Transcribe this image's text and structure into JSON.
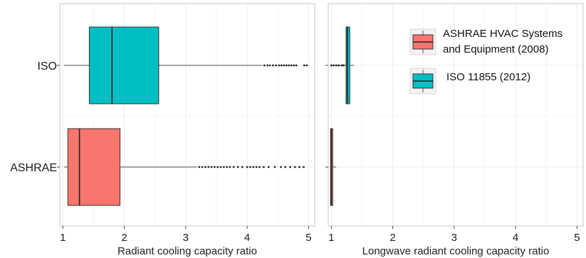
{
  "chart_data": [
    {
      "type": "boxplot",
      "orientation": "horizontal",
      "xlabel": "Radiant cooling capacity ratio",
      "xlim": [
        0.95,
        5.1
      ],
      "xticks": [
        1,
        2,
        3,
        4,
        5
      ],
      "categories": [
        "ISO",
        "ASHRAE"
      ],
      "grid": true,
      "series": [
        {
          "name": "ISO 11855 (2012)",
          "category": "ISO",
          "whisker_low": 1.02,
          "q1": 1.43,
          "median": 1.8,
          "q3": 2.56,
          "whisker_high": 4.25,
          "outliers": [
            4.28,
            4.33,
            4.37,
            4.42,
            4.47,
            4.52,
            4.56,
            4.6,
            4.64,
            4.68,
            4.72,
            4.76,
            4.8,
            4.93,
            4.97
          ]
        },
        {
          "name": "ASHRAE HVAC Systems and Equipment (2008)",
          "category": "ASHRAE",
          "whisker_low": 1.02,
          "q1": 1.08,
          "median": 1.27,
          "q3": 1.93,
          "whisker_high": 3.18,
          "outliers": [
            3.22,
            3.27,
            3.32,
            3.37,
            3.42,
            3.47,
            3.52,
            3.57,
            3.62,
            3.67,
            3.72,
            3.78,
            3.85,
            3.92,
            4.0,
            4.05,
            4.1,
            4.15,
            4.2,
            4.27,
            4.35,
            4.45,
            4.55,
            4.62,
            4.7,
            4.78,
            4.85,
            4.92
          ]
        }
      ]
    },
    {
      "type": "boxplot",
      "orientation": "horizontal",
      "xlabel": "Longwave radiant cooling capacity ratio",
      "xlim": [
        0.95,
        5.1
      ],
      "xticks": [
        1,
        2,
        3,
        4,
        5
      ],
      "categories": [
        "ISO",
        "ASHRAE"
      ],
      "grid": true,
      "series": [
        {
          "name": "ISO 11855 (2012)",
          "category": "ISO",
          "whisker_low": 1.0,
          "q1": 1.24,
          "median": 1.26,
          "q3": 1.3,
          "whisker_high": 1.37,
          "outliers": [
            1.0,
            1.04,
            1.08,
            1.12,
            1.17,
            1.2
          ]
        },
        {
          "name": "ASHRAE HVAC Systems and Equipment (2008)",
          "category": "ASHRAE",
          "whisker_low": 1.0,
          "q1": 1.0,
          "median": 1.0,
          "q3": 1.0,
          "whisker_high": 1.08,
          "outliers": []
        }
      ]
    }
  ],
  "legend": {
    "placement": "top-right",
    "items": [
      {
        "name": "ASHRAE HVAC Systems and Equipment (2008)",
        "lines": [
          "ASHRAE HVAC Systems",
          "and Equipment (2008)"
        ],
        "color": "#F8766D"
      },
      {
        "name": "ISO 11855 (2012)",
        "lines": [
          "ISO 11855 (2012)"
        ],
        "color": "#00BFC4"
      }
    ]
  },
  "colors": {
    "ISO": "#00BFC4",
    "ASHRAE": "#F8766D",
    "panel_border": "#c8c8c8",
    "grid": "#ececec"
  }
}
